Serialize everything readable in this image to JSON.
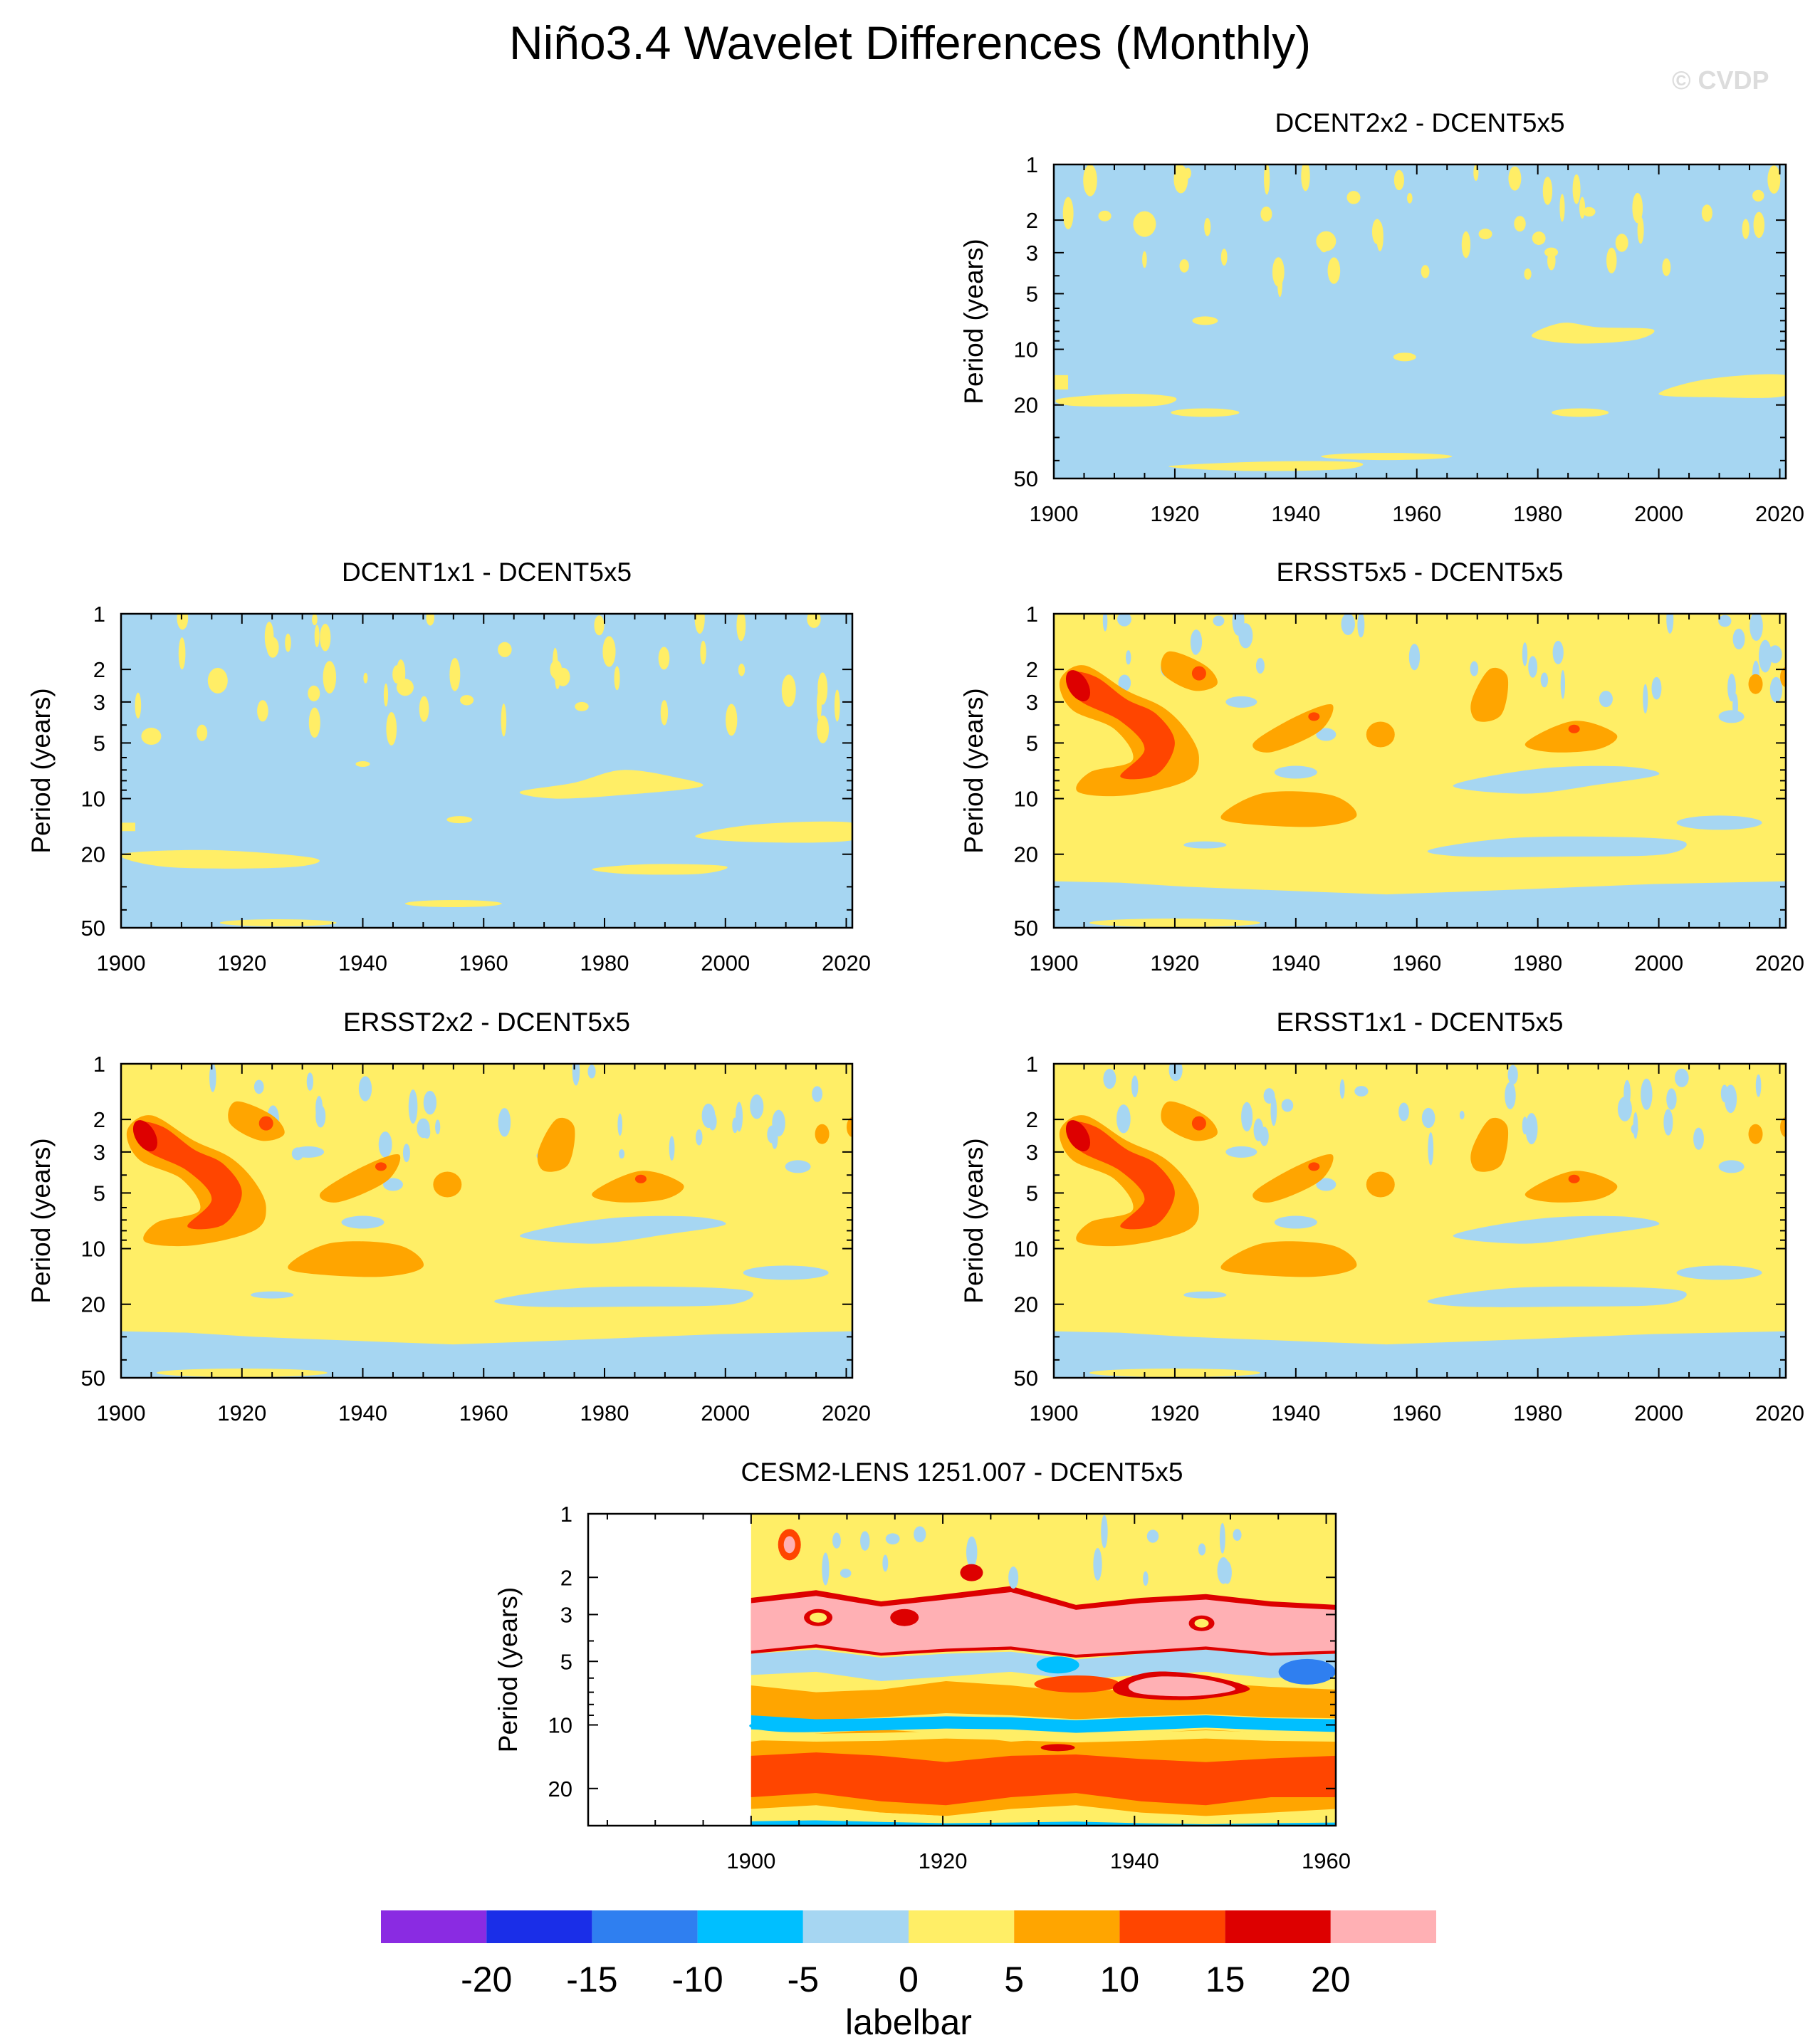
{
  "title": "Niño3.4 Wavelet Differences (Monthly)",
  "watermark": "© CVDP",
  "chart_data": [
    {
      "type": "heatmap",
      "title": "DCENT2x2 - DCENT5x5",
      "ylabel": "Period (years)",
      "xlim": [
        1900,
        2021
      ],
      "ylim": [
        1,
        50
      ],
      "y_scale": "log",
      "y_reversed": true,
      "xticks": [
        1900,
        1920,
        1940,
        1960,
        1980,
        2000,
        2020
      ],
      "yticks": [
        1,
        2,
        3,
        5,
        10,
        20,
        50
      ],
      "background_level": "-5 to 0",
      "features": [
        {
          "level": "0 to 5",
          "x": [
            1980,
            2000
          ],
          "y": [
            7,
            9
          ]
        },
        {
          "level": "0 to 5",
          "x": [
            2000,
            2021
          ],
          "y": [
            14,
            18
          ]
        },
        {
          "level": "0 to 5",
          "x": [
            1900,
            1920
          ],
          "y": [
            17,
            21
          ]
        },
        {
          "level": "0 to 5",
          "x": [
            1920,
            1950
          ],
          "y": [
            38,
            45
          ]
        }
      ]
    },
    {
      "type": "heatmap",
      "title": "DCENT1x1 - DCENT5x5",
      "ylabel": "Period (years)",
      "xlim": [
        1900,
        2021
      ],
      "ylim": [
        1,
        50
      ],
      "y_scale": "log",
      "y_reversed": true,
      "xticks": [
        1900,
        1920,
        1940,
        1960,
        1980,
        2000,
        2020
      ],
      "yticks": [
        1,
        2,
        3,
        5,
        10,
        20,
        50
      ],
      "background_level": "-5 to 0",
      "features": [
        {
          "level": "0 to 5",
          "x": [
            1965,
            1995
          ],
          "y": [
            7,
            10
          ]
        },
        {
          "level": "0 to 5",
          "x": [
            2000,
            2021
          ],
          "y": [
            13,
            17
          ]
        },
        {
          "level": "0 to 5",
          "x": [
            1900,
            1930
          ],
          "y": [
            19,
            24
          ]
        },
        {
          "level": "0 to 5",
          "x": [
            1980,
            2000
          ],
          "y": [
            23,
            26
          ]
        }
      ]
    },
    {
      "type": "heatmap",
      "title": "ERSST5x5 - DCENT5x5",
      "ylabel": "Period (years)",
      "xlim": [
        1900,
        2021
      ],
      "ylim": [
        1,
        50
      ],
      "y_scale": "log",
      "y_reversed": true,
      "xticks": [
        1900,
        1920,
        1940,
        1960,
        1980,
        2000,
        2020
      ],
      "yticks": [
        1,
        2,
        3,
        5,
        10,
        20,
        50
      ],
      "background_level": "0 to 5",
      "features": [
        {
          "level": "10 to 15",
          "x": [
            1902,
            1906
          ],
          "y": [
            2.2,
            2.8
          ]
        },
        {
          "level": "5 to 10",
          "x": [
            1908,
            1925
          ],
          "y": [
            4,
            9
          ]
        },
        {
          "level": "5 to 10",
          "x": [
            1928,
            1950
          ],
          "y": [
            9,
            15
          ]
        },
        {
          "level": "-5 to 0",
          "x": [
            1960,
            2000
          ],
          "y": [
            15,
            20
          ]
        },
        {
          "level": "-5 to 0",
          "x": [
            1900,
            2021
          ],
          "y": [
            28,
            50
          ]
        }
      ]
    },
    {
      "type": "heatmap",
      "title": "ERSST2x2 - DCENT5x5",
      "ylabel": "Period (years)",
      "xlim": [
        1900,
        2021
      ],
      "ylim": [
        1,
        50
      ],
      "y_scale": "log",
      "y_reversed": true,
      "xticks": [
        1900,
        1920,
        1940,
        1960,
        1980,
        2000,
        2020
      ],
      "yticks": [
        1,
        2,
        3,
        5,
        10,
        20,
        50
      ],
      "background_level": "0 to 5",
      "features": [
        {
          "level": "10 to 15",
          "x": [
            1902,
            1906
          ],
          "y": [
            2.2,
            2.8
          ]
        },
        {
          "level": "5 to 10",
          "x": [
            1908,
            1925
          ],
          "y": [
            4,
            9
          ]
        },
        {
          "level": "5 to 10",
          "x": [
            1928,
            1950
          ],
          "y": [
            9,
            15
          ]
        },
        {
          "level": "-5 to 0",
          "x": [
            1960,
            2000
          ],
          "y": [
            15,
            20
          ]
        },
        {
          "level": "-5 to 0",
          "x": [
            1900,
            2021
          ],
          "y": [
            28,
            50
          ]
        }
      ]
    },
    {
      "type": "heatmap",
      "title": "ERSST1x1 - DCENT5x5",
      "ylabel": "Period (years)",
      "xlim": [
        1900,
        2021
      ],
      "ylim": [
        1,
        50
      ],
      "y_scale": "log",
      "y_reversed": true,
      "xticks": [
        1900,
        1920,
        1940,
        1960,
        1980,
        2000,
        2020
      ],
      "yticks": [
        1,
        2,
        3,
        5,
        10,
        20,
        50
      ],
      "background_level": "0 to 5",
      "features": [
        {
          "level": "10 to 15",
          "x": [
            1902,
            1906
          ],
          "y": [
            2.2,
            2.8
          ]
        },
        {
          "level": "5 to 10",
          "x": [
            1908,
            1925
          ],
          "y": [
            4,
            9
          ]
        },
        {
          "level": "5 to 10",
          "x": [
            1928,
            1950
          ],
          "y": [
            9,
            15
          ]
        },
        {
          "level": "-5 to 0",
          "x": [
            1960,
            2000
          ],
          "y": [
            15,
            20
          ]
        },
        {
          "level": "-5 to 0",
          "x": [
            1900,
            2021
          ],
          "y": [
            28,
            50
          ]
        }
      ]
    },
    {
      "type": "heatmap",
      "title": "CESM2-LENS 1251.007 - DCENT5x5",
      "ylabel": "Period (years)",
      "xlim": [
        1883,
        1961
      ],
      "ylim": [
        1,
        30
      ],
      "y_scale": "log",
      "y_reversed": true,
      "xticks": [
        1900,
        1920,
        1940,
        1960
      ],
      "yticks": [
        1,
        2,
        3,
        5,
        10,
        20
      ],
      "data_start_x": 1900,
      "features": [
        {
          "level": "20+",
          "x": [
            1900,
            1961
          ],
          "y": [
            2.5,
            4.5
          ]
        },
        {
          "level": "20+",
          "x": [
            1939,
            1952
          ],
          "y": [
            5.5,
            7.5
          ]
        },
        {
          "level": "-10 to -5",
          "x": [
            1900,
            1961
          ],
          "y": [
            9,
            10.5
          ]
        },
        {
          "level": "10 to 15",
          "x": [
            1900,
            1961
          ],
          "y": [
            10,
            22
          ]
        },
        {
          "level": "0 to 5",
          "x": [
            1900,
            1961
          ],
          "y": [
            1,
            2
          ]
        }
      ]
    }
  ],
  "labelbar": {
    "label": "labelbar",
    "colors": [
      "#8a2be2",
      "#1a2ee8",
      "#2f7ff0",
      "#00bfff",
      "#a6d6f2",
      "#ffee66",
      "#ffa500",
      "#ff4500",
      "#dd0000",
      "#ffb0b4"
    ],
    "tick_labels": [
      "-20",
      "-15",
      "-10",
      "-5",
      "0",
      "5",
      "10",
      "15",
      "20"
    ]
  }
}
